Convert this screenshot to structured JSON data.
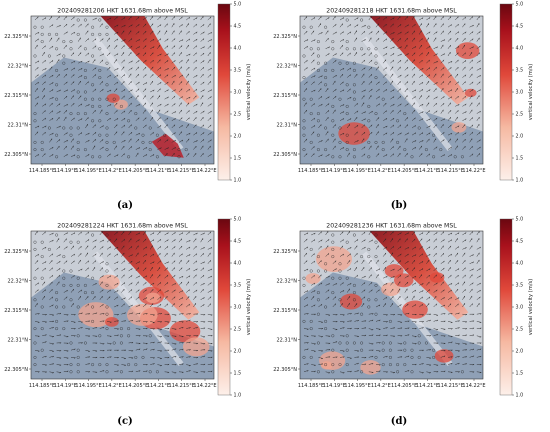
{
  "colors": {
    "land_gray": "#8fa0b6",
    "background_light": "#c9ced6",
    "velocity_low": "#fbe9e2",
    "velocity_mid": "#e0483a",
    "velocity_high": "#7d0a14",
    "arrow": "#222222"
  },
  "chart_data": [
    {
      "type": "heatmap",
      "panel_label": "(a)",
      "title": "202409281206 HKT 1631.68m above MSL",
      "x_ticks": [
        "114.185°E",
        "114.19°E",
        "114.195°E",
        "114.2°E",
        "114.205°E",
        "114.21°E",
        "114.215°E",
        "114.22°E"
      ],
      "y_ticks": [
        "22.325°N",
        "22.32°N",
        "22.315°N",
        "22.31°N",
        "22.305°N"
      ],
      "colorbar": {
        "label": "vertical velocity (m/s)",
        "ticks": [
          "5.0",
          "4.5",
          "4.0",
          "3.5",
          "3.0",
          "2.5",
          "2.0",
          "1.5",
          "1.0"
        ],
        "range": [
          1.0,
          5.0
        ]
      }
    },
    {
      "type": "heatmap",
      "panel_label": "(b)",
      "title": "202409281218 HKT 1631.68m above MSL",
      "x_ticks": [
        "114.185°E",
        "114.19°E",
        "114.195°E",
        "114.2°E",
        "114.205°E",
        "114.21°E",
        "114.215°E",
        "114.22°E"
      ],
      "y_ticks": [
        "22.325°N",
        "22.32°N",
        "22.315°N",
        "22.31°N",
        "22.305°N"
      ],
      "colorbar": {
        "label": "vertical velocity (m/s)",
        "ticks": [
          "5.0",
          "4.5",
          "4.0",
          "3.5",
          "3.0",
          "2.5",
          "2.0",
          "1.5",
          "1.0"
        ],
        "range": [
          1.0,
          5.0
        ]
      }
    },
    {
      "type": "heatmap",
      "panel_label": "(c)",
      "title": "202409281224 HKT 1631.68m above MSL",
      "x_ticks": [
        "114.185°E",
        "114.19°E",
        "114.195°E",
        "114.2°E",
        "114.205°E",
        "114.21°E",
        "114.215°E",
        "114.22°E"
      ],
      "y_ticks": [
        "22.325°N",
        "22.32°N",
        "22.315°N",
        "22.31°N",
        "22.305°N"
      ],
      "colorbar": {
        "label": "vertical velocity (m/s)",
        "ticks": [
          "5.0",
          "4.5",
          "4.0",
          "3.5",
          "3.0",
          "2.5",
          "2.0",
          "1.5",
          "1.0"
        ],
        "range": [
          1.0,
          5.0
        ]
      }
    },
    {
      "type": "heatmap",
      "panel_label": "(d)",
      "title": "202409281236 HKT 1631.68m above MSL",
      "x_ticks": [
        "114.185°E",
        "114.19°E",
        "114.195°E",
        "114.2°E",
        "114.205°E",
        "114.21°E",
        "114.215°E",
        "114.22°E"
      ],
      "y_ticks": [
        "22.325°N",
        "22.32°N",
        "22.315°N",
        "22.31°N",
        "22.305°N"
      ],
      "colorbar": {
        "label": "vertical velocity (m/s)",
        "ticks": [
          "5.0",
          "4.5",
          "4.0",
          "3.5",
          "3.0",
          "2.5",
          "2.0",
          "1.5",
          "1.0"
        ],
        "range": [
          1.0,
          5.0
        ]
      }
    }
  ]
}
